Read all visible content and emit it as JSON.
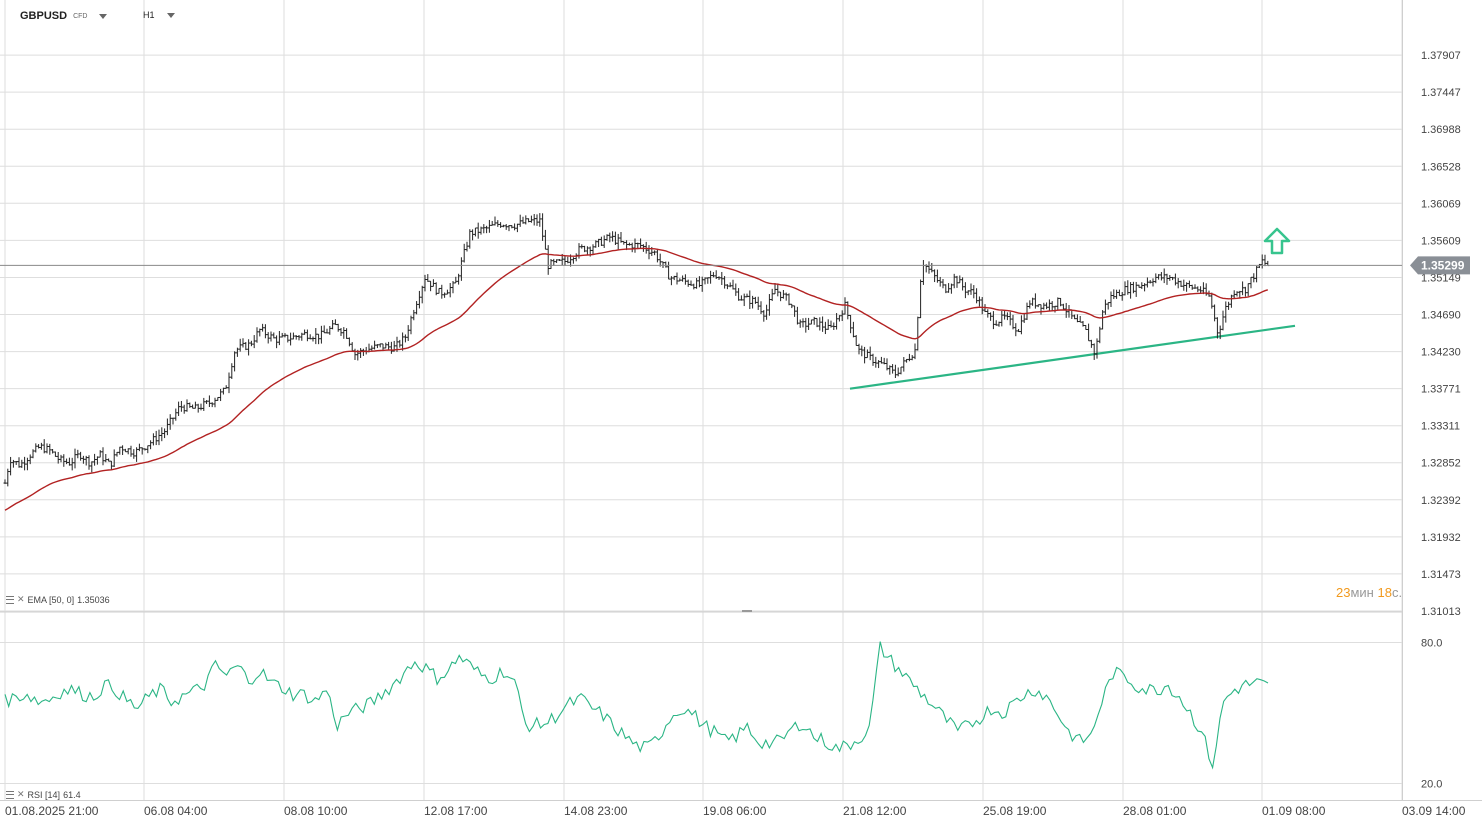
{
  "header": {
    "symbol": "GBPUSD",
    "symbol_suffix": "CFD",
    "timeframe": "H1"
  },
  "indicators": {
    "ema_label": "EMA [50, 0]",
    "ema_value": "1.35036",
    "rsi_label": "RSI [14]",
    "rsi_value": "61.4"
  },
  "timer": {
    "minutes": "23",
    "min_unit": "мин",
    "seconds": "18",
    "sec_unit": "с."
  },
  "current_price": "1.35299",
  "colors": {
    "candles": "#222222",
    "ema": "#b22222",
    "trendline": "#2bb585",
    "arrow": "#37c48e",
    "rsi": "#2bb585",
    "price_badge": "#8a8f96",
    "timer_number": "#f29a1e",
    "grid": "#dedede"
  },
  "chart_data": [
    {
      "type": "candlestick",
      "symbol": "GBPUSD",
      "timeframe": "H1",
      "ylim": [
        1.31013,
        1.38367
      ],
      "y_ticks": [
        "1.37907",
        "1.37447",
        "1.36988",
        "1.36528",
        "1.36069",
        "1.35609",
        "1.35149",
        "1.34690",
        "1.34230",
        "1.33771",
        "1.33311",
        "1.32852",
        "1.32392",
        "1.31932",
        "1.31473",
        "1.31013"
      ],
      "x_ticks": [
        "01.08.2025  21:00",
        "06.08  04:00",
        "08.08  10:00",
        "12.08  17:00",
        "14.08  23:00",
        "19.08  06:00",
        "21.08  12:00",
        "25.08  19:00",
        "28.08  01:00",
        "01.09  08:00",
        "03.09  14:00"
      ],
      "close_series": [
        [
          0,
          1.323
        ],
        [
          10,
          1.329
        ],
        [
          20,
          1.3282
        ],
        [
          30,
          1.3295
        ],
        [
          40,
          1.3305
        ],
        [
          50,
          1.33
        ],
        [
          60,
          1.3288
        ],
        [
          70,
          1.3285
        ],
        [
          80,
          1.3296
        ],
        [
          90,
          1.3285
        ],
        [
          100,
          1.3295
        ],
        [
          110,
          1.3282
        ],
        [
          120,
          1.3305
        ],
        [
          135,
          1.3298
        ],
        [
          150,
          1.331
        ],
        [
          165,
          1.3325
        ],
        [
          180,
          1.3355
        ],
        [
          195,
          1.3352
        ],
        [
          210,
          1.336
        ],
        [
          225,
          1.3375
        ],
        [
          235,
          1.3425
        ],
        [
          250,
          1.3432
        ],
        [
          260,
          1.345
        ],
        [
          275,
          1.3438
        ],
        [
          290,
          1.344
        ],
        [
          305,
          1.3445
        ],
        [
          320,
          1.3442
        ],
        [
          335,
          1.3455
        ],
        [
          345,
          1.3448
        ],
        [
          355,
          1.342
        ],
        [
          365,
          1.3425
        ],
        [
          380,
          1.343
        ],
        [
          395,
          1.3428
        ],
        [
          405,
          1.344
        ],
        [
          415,
          1.348
        ],
        [
          425,
          1.3515
        ],
        [
          440,
          1.3495
        ],
        [
          455,
          1.3505
        ],
        [
          470,
          1.357
        ],
        [
          485,
          1.3575
        ],
        [
          500,
          1.3582
        ],
        [
          515,
          1.358
        ],
        [
          530,
          1.3585
        ],
        [
          540,
          1.3585
        ],
        [
          548,
          1.353
        ],
        [
          565,
          1.3535
        ],
        [
          580,
          1.355
        ],
        [
          595,
          1.3555
        ],
        [
          610,
          1.3565
        ],
        [
          625,
          1.3555
        ],
        [
          640,
          1.3555
        ],
        [
          655,
          1.3545
        ],
        [
          670,
          1.3515
        ],
        [
          685,
          1.351
        ],
        [
          700,
          1.3505
        ],
        [
          715,
          1.352
        ],
        [
          725,
          1.351
        ],
        [
          740,
          1.349
        ],
        [
          755,
          1.3485
        ],
        [
          765,
          1.347
        ],
        [
          775,
          1.35
        ],
        [
          790,
          1.3485
        ],
        [
          800,
          1.3455
        ],
        [
          815,
          1.346
        ],
        [
          830,
          1.345
        ],
        [
          845,
          1.348
        ],
        [
          858,
          1.3425
        ],
        [
          870,
          1.3415
        ],
        [
          885,
          1.3405
        ],
        [
          895,
          1.3395
        ],
        [
          905,
          1.341
        ],
        [
          915,
          1.3425
        ],
        [
          922,
          1.3535
        ],
        [
          935,
          1.3515
        ],
        [
          945,
          1.35
        ],
        [
          955,
          1.3515
        ],
        [
          965,
          1.35
        ],
        [
          975,
          1.3495
        ],
        [
          985,
          1.347
        ],
        [
          995,
          1.346
        ],
        [
          1005,
          1.3465
        ],
        [
          1018,
          1.345
        ],
        [
          1030,
          1.3485
        ],
        [
          1045,
          1.348
        ],
        [
          1060,
          1.3485
        ],
        [
          1075,
          1.346
        ],
        [
          1085,
          1.345
        ],
        [
          1095,
          1.342
        ],
        [
          1103,
          1.3475
        ],
        [
          1110,
          1.349
        ],
        [
          1125,
          1.35
        ],
        [
          1140,
          1.3505
        ],
        [
          1155,
          1.3515
        ],
        [
          1170,
          1.3515
        ],
        [
          1185,
          1.3505
        ],
        [
          1200,
          1.35
        ],
        [
          1210,
          1.349
        ],
        [
          1218,
          1.3445
        ],
        [
          1225,
          1.3475
        ],
        [
          1235,
          1.35
        ],
        [
          1245,
          1.35
        ],
        [
          1255,
          1.352
        ],
        [
          1262,
          1.3535
        ],
        [
          1268,
          1.353
        ]
      ],
      "ema": {
        "name": "EMA [50, 0]",
        "last": 1.35036
      },
      "trendline": {
        "from": [
          850,
          1.3377
        ],
        "to": [
          1295,
          1.3455
        ]
      },
      "current_price": 1.35299,
      "annotation": "up-arrow"
    },
    {
      "type": "line",
      "name": "RSI [14]",
      "ylim": [
        13,
        93
      ],
      "y_ticks": [
        "80.0",
        "20.0"
      ],
      "values": [
        55,
        57,
        58,
        55,
        56,
        59,
        60,
        58,
        57,
        62,
        60,
        55,
        52,
        57,
        60,
        55,
        57,
        59,
        62,
        70,
        66,
        70,
        64,
        68,
        63,
        61,
        58,
        58,
        55,
        60,
        45,
        50,
        52,
        54,
        58,
        62,
        67,
        72,
        69,
        65,
        68,
        74,
        70,
        66,
        65,
        68,
        63,
        45,
        45,
        46,
        50,
        54,
        56,
        52,
        49,
        44,
        40,
        36,
        35,
        40,
        48,
        52,
        50,
        45,
        42,
        38,
        40,
        44,
        38,
        37,
        38,
        43,
        46,
        40,
        38,
        35,
        36,
        39,
        43,
        78,
        72,
        67,
        62,
        57,
        52,
        47,
        42,
        45,
        48,
        52,
        50,
        54,
        58,
        60,
        57,
        50,
        42,
        38,
        40,
        55,
        67,
        66,
        62,
        60,
        60,
        62,
        57,
        50,
        42,
        28,
        55,
        60,
        62,
        63,
        61
      ]
    }
  ]
}
